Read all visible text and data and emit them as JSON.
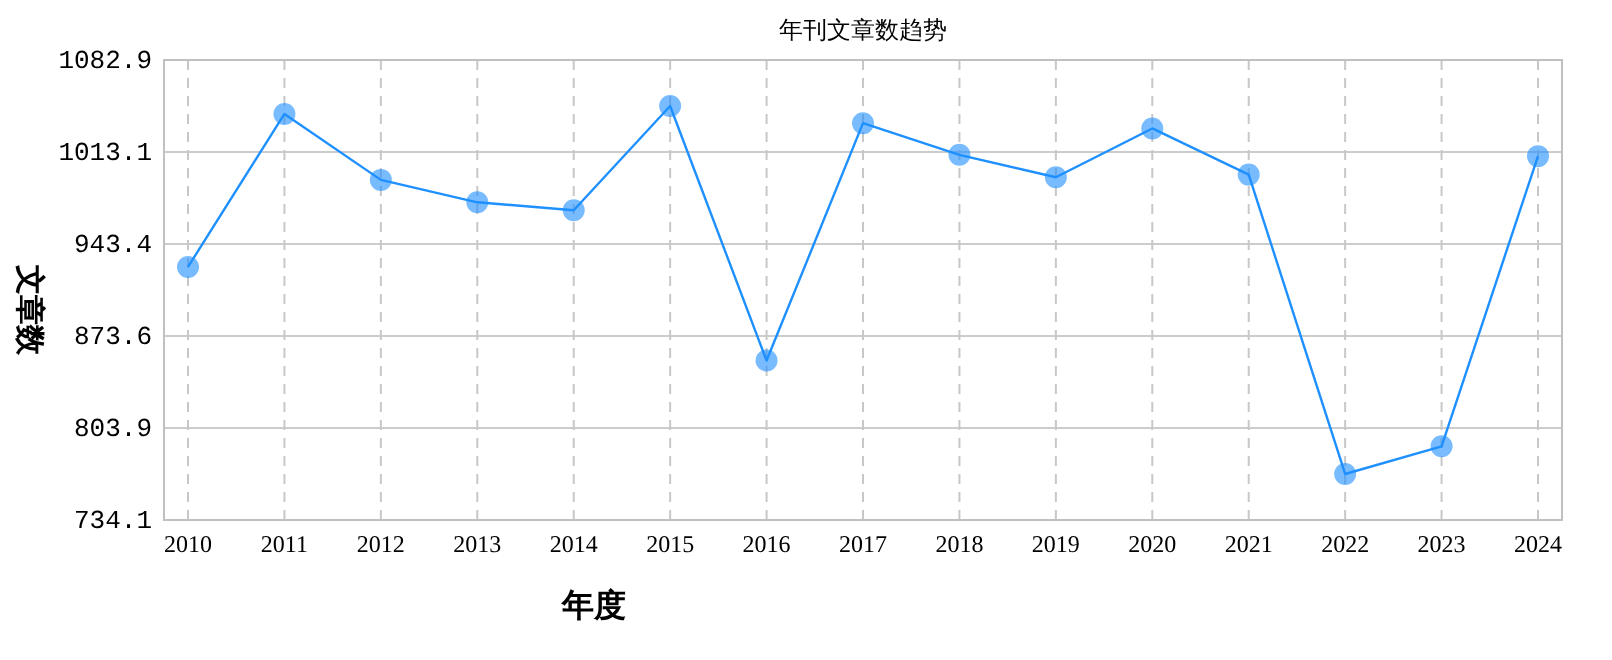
{
  "chart_data": {
    "type": "line",
    "title": "年刊文章数趋势",
    "xlabel": "年度",
    "ylabel": "文章数",
    "categories": [
      "2010",
      "2011",
      "2012",
      "2013",
      "2014",
      "2015",
      "2016",
      "2017",
      "2018",
      "2019",
      "2020",
      "2021",
      "2022",
      "2023",
      "2024"
    ],
    "series": [
      {
        "color": "#1e90ff",
        "values": [
          926,
          1042,
          992,
          975,
          969,
          1048,
          855,
          1035,
          1011,
          994,
          1031,
          996,
          769,
          790,
          1010
        ]
      }
    ],
    "ylim": [
      734.1,
      1082.9
    ],
    "yticks": [
      734.1,
      803.9,
      873.6,
      943.4,
      1013.1,
      1082.9
    ],
    "grid": true,
    "marker": "circle",
    "line_style": "solid"
  }
}
